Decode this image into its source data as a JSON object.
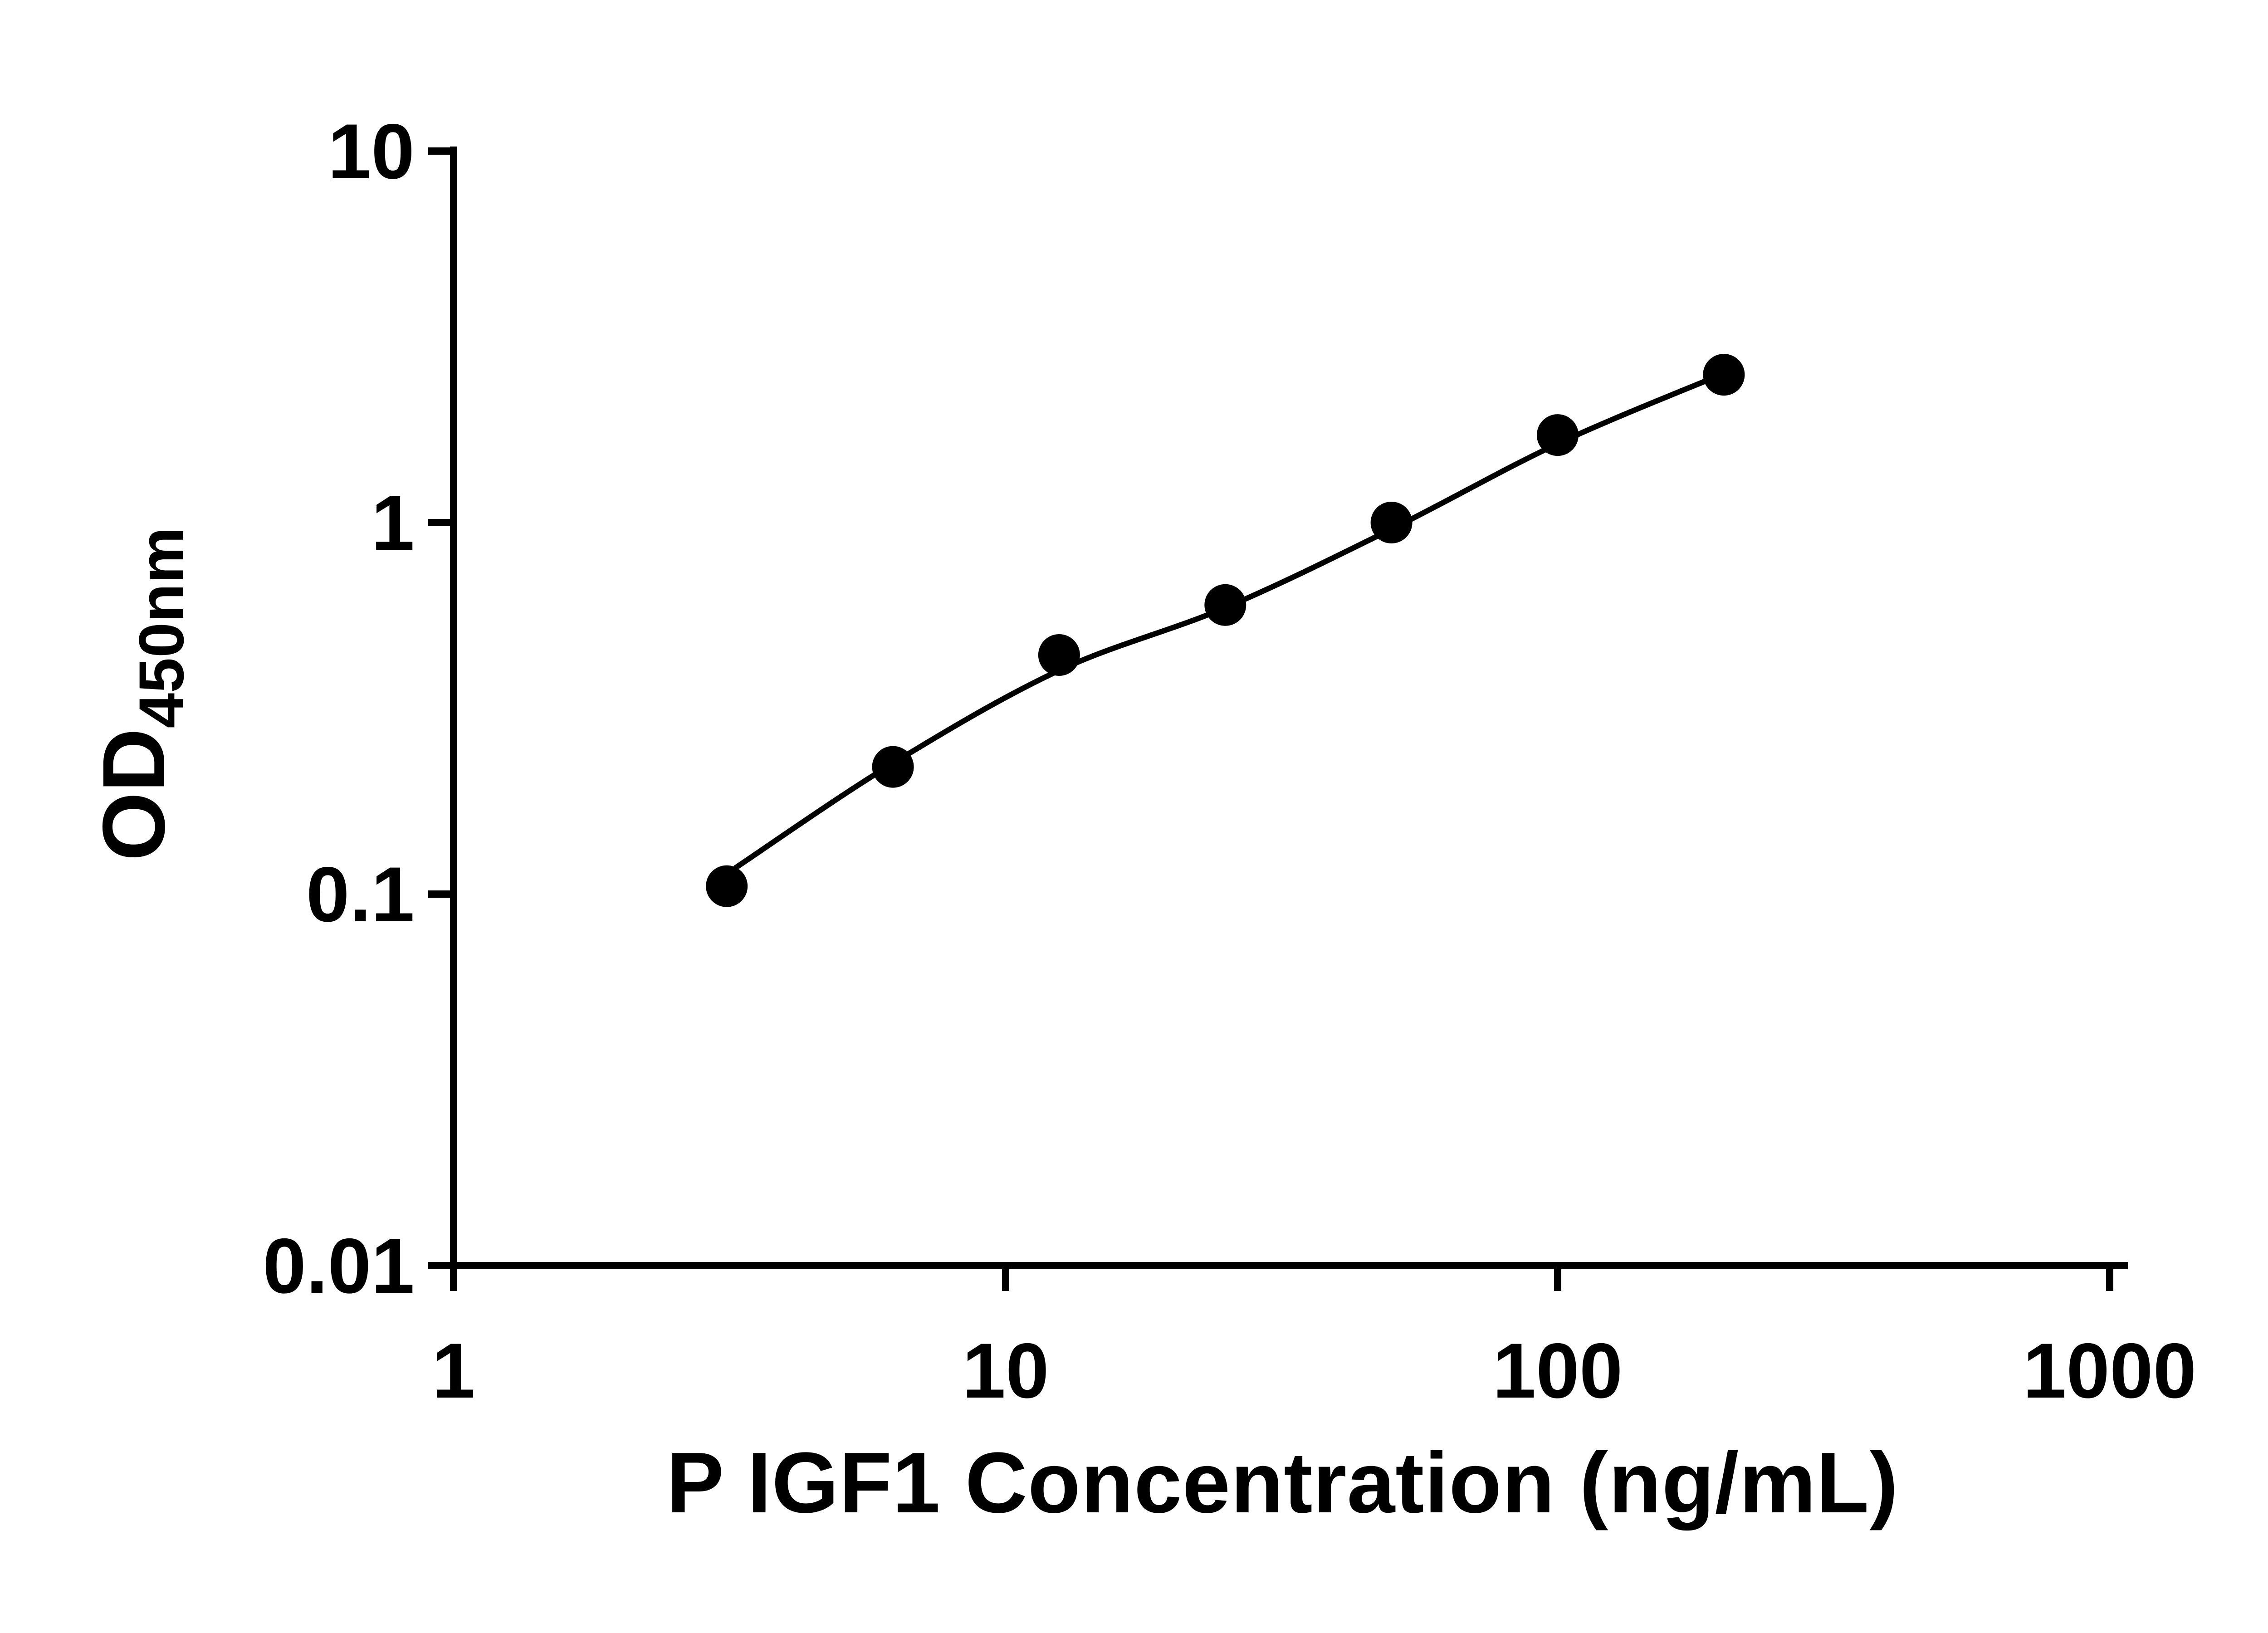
{
  "figure": {
    "background": "#ffffff",
    "ink_color": "#000000"
  },
  "chart_data": {
    "type": "scatter",
    "title": "",
    "xlabel": "P IGF1 Concentration (ng/mL)",
    "ylabel": "OD450nm",
    "ylabel_main": "OD",
    "ylabel_sub": "450nm",
    "x_scale": "log",
    "y_scale": "log",
    "xlim": [
      1,
      1000
    ],
    "ylim": [
      0.01,
      10
    ],
    "x_ticks": [
      1,
      10,
      100,
      1000
    ],
    "x_tick_labels": [
      "1",
      "10",
      "100",
      "1000"
    ],
    "y_ticks": [
      10,
      1,
      0.1,
      0.01
    ],
    "y_tick_labels": [
      "10",
      "1",
      "0.1",
      "0.01"
    ],
    "grid": false,
    "legend": false,
    "series": [
      {
        "name": "standard-curve-points",
        "marker": "circle",
        "color": "#000000",
        "x": [
          3.125,
          6.25,
          12.5,
          25,
          50,
          100,
          200
        ],
        "y": [
          0.105,
          0.22,
          0.44,
          0.6,
          1.0,
          1.72,
          2.5
        ]
      }
    ],
    "trend_line": {
      "name": "fitted-curve",
      "color": "#000000",
      "x": [
        3.25,
        6.25,
        12.5,
        25,
        50,
        100,
        200
      ],
      "y": [
        0.118,
        0.225,
        0.4,
        0.59,
        0.96,
        1.63,
        2.52
      ]
    }
  }
}
